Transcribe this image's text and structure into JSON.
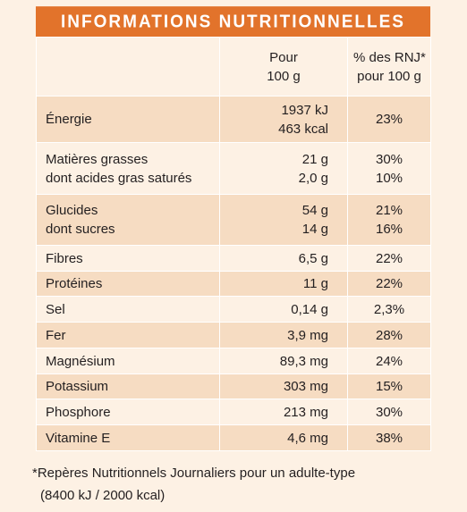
{
  "header": {
    "title": "INFORMATIONS NUTRITIONNELLES"
  },
  "columns": {
    "per100": [
      "Pour",
      "100 g"
    ],
    "rnj": [
      "% des RNJ*",
      "pour 100 g"
    ]
  },
  "rows": [
    {
      "names": [
        "Énergie"
      ],
      "values": [
        "1937 kJ",
        "463 kcal"
      ],
      "pcts": [
        "23%"
      ]
    },
    {
      "names": [
        "Matières grasses",
        "dont acides gras saturés"
      ],
      "values": [
        "21 g",
        "2,0 g"
      ],
      "pcts": [
        "30%",
        "10%"
      ]
    },
    {
      "names": [
        "Glucides",
        "dont sucres"
      ],
      "values": [
        "54 g",
        "14 g"
      ],
      "pcts": [
        "21%",
        "16%"
      ]
    },
    {
      "names": [
        "Fibres"
      ],
      "values": [
        "6,5 g"
      ],
      "pcts": [
        "22%"
      ]
    },
    {
      "names": [
        "Protéines"
      ],
      "values": [
        "11 g"
      ],
      "pcts": [
        "22%"
      ]
    },
    {
      "names": [
        "Sel"
      ],
      "values": [
        "0,14 g"
      ],
      "pcts": [
        "2,3%"
      ]
    },
    {
      "names": [
        "Fer"
      ],
      "values": [
        "3,9 mg"
      ],
      "pcts": [
        "28%"
      ]
    },
    {
      "names": [
        "Magnésium"
      ],
      "values": [
        "89,3 mg"
      ],
      "pcts": [
        "24%"
      ]
    },
    {
      "names": [
        "Potassium"
      ],
      "values": [
        "303 mg"
      ],
      "pcts": [
        "15%"
      ]
    },
    {
      "names": [
        "Phosphore"
      ],
      "values": [
        "213 mg"
      ],
      "pcts": [
        "30%"
      ]
    },
    {
      "names": [
        "Vitamine E"
      ],
      "values": [
        "4,6 mg"
      ],
      "pcts": [
        "38%"
      ]
    }
  ],
  "footnote": [
    "*Repères Nutritionnels Journaliers pour un adulte-type",
    "(8400 kJ / 2000 kcal)"
  ],
  "colors": {
    "accent": "#e2732b",
    "band": "#f6dcc2",
    "paper": "#fdf1e4"
  }
}
